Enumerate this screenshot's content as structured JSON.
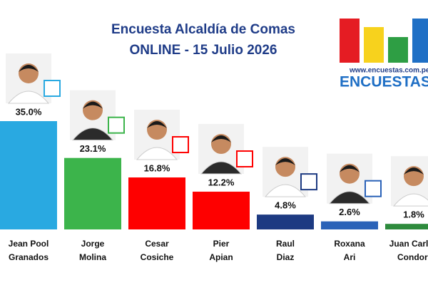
{
  "chart_data": {
    "type": "bar",
    "title": "Encuesta Alcaldía de Comas",
    "subtitle": "ONLINE - 15 Julio 2026",
    "categories": [
      "Jean Pool Granados",
      "Jorge Molina",
      "Cesar Cosiche",
      "Pier Apian",
      "Raul Diaz",
      "Roxana Ari",
      "Juan Carlos Condori"
    ],
    "values": [
      35.0,
      23.1,
      16.8,
      12.2,
      4.8,
      2.6,
      1.8
    ],
    "value_labels": [
      "35.0%",
      "23.1%",
      "16.8%",
      "12.2%",
      "4.8%",
      "2.6%",
      "1.8%"
    ],
    "colors": [
      "#29a9e1",
      "#3cb44b",
      "#fe0000",
      "#fe0000",
      "#1d3a82",
      "#2a62b8",
      "#2e8b3d"
    ],
    "ylim": [
      0,
      35
    ],
    "annotations": [
      "www.encuestas.com.pe",
      "ENCUESTAS"
    ]
  }
}
